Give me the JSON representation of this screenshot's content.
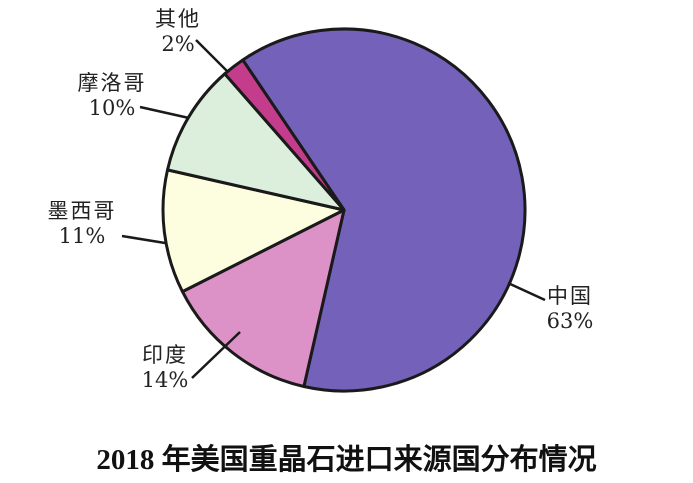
{
  "chart_data": {
    "type": "pie",
    "title": "2018 年美国重晶石进口来源国分布情况",
    "slices": [
      {
        "label": "中国",
        "value": 63,
        "value_label": "63%",
        "color": "#7462ba"
      },
      {
        "label": "印度",
        "value": 14,
        "value_label": "14%",
        "color": "#dc92c6"
      },
      {
        "label": "墨西哥",
        "value": 11,
        "value_label": "11%",
        "color": "#fdfde0"
      },
      {
        "label": "摩洛哥",
        "value": 10,
        "value_label": "10%",
        "color": "#dcefdc"
      },
      {
        "label": "其他",
        "value": 2,
        "value_label": "2%",
        "color": "#c43d8c"
      }
    ],
    "legend": "none",
    "direction": "clockwise"
  }
}
